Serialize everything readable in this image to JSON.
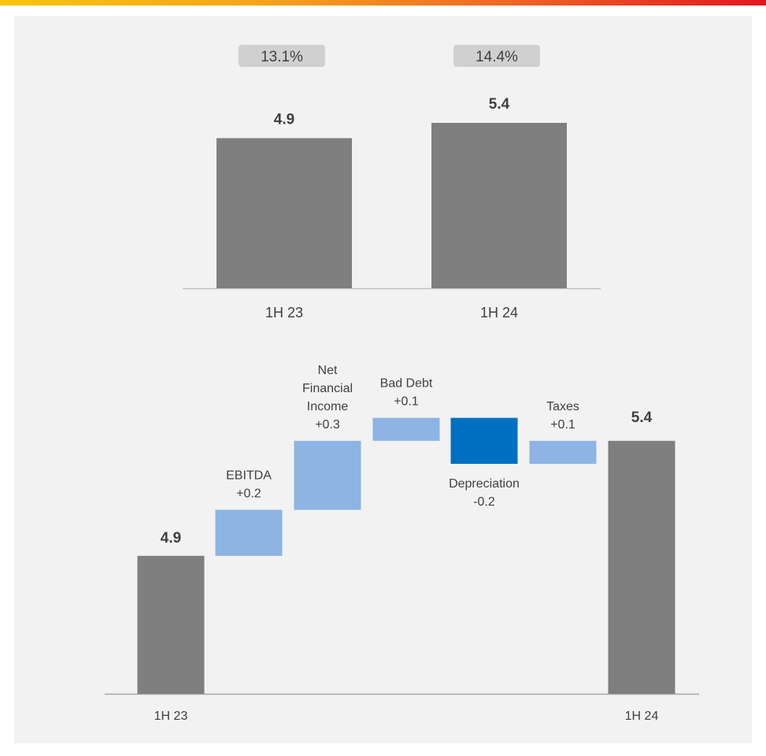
{
  "chart_data": [
    {
      "type": "bar",
      "categories": [
        "1H 23",
        "1H 24"
      ],
      "values": [
        4.9,
        5.4
      ],
      "value_labels": [
        "4.9",
        "5.4"
      ],
      "badges": [
        "13.1%",
        "14.4%"
      ],
      "ylim": [
        0,
        5.4
      ],
      "bar_color": "#7f7f7f",
      "badge_color": "#d0d0d0"
    },
    {
      "type": "waterfall",
      "categories": [
        "1H 23",
        "EBITDA",
        "Net Financial Income",
        "Bad Debt",
        "Depreciation",
        "Taxes",
        "1H 24"
      ],
      "start": {
        "label": "1H 23",
        "value": 4.9,
        "value_label": "4.9"
      },
      "steps": [
        {
          "name_lines": [
            "EBITDA"
          ],
          "delta": 0.2,
          "delta_label": "+0.2",
          "label_pos": "above"
        },
        {
          "name_lines": [
            "Net",
            "Financial",
            "Income"
          ],
          "delta": 0.3,
          "delta_label": "+0.3",
          "label_pos": "above"
        },
        {
          "name_lines": [
            "Bad Debt"
          ],
          "delta": 0.1,
          "delta_label": "+0.1",
          "label_pos": "above"
        },
        {
          "name_lines": [
            "Depreciation"
          ],
          "delta": -0.2,
          "delta_label": "-0.2",
          "label_pos": "below"
        },
        {
          "name_lines": [
            "Taxes"
          ],
          "delta": 0.1,
          "delta_label": "+0.1",
          "label_pos": "above"
        }
      ],
      "end": {
        "label": "1H 24",
        "value": 5.4,
        "value_label": "5.4"
      },
      "colors": {
        "total": "#7f7f7f",
        "increase": "#8db4e2",
        "decrease": "#0070c0"
      }
    }
  ]
}
